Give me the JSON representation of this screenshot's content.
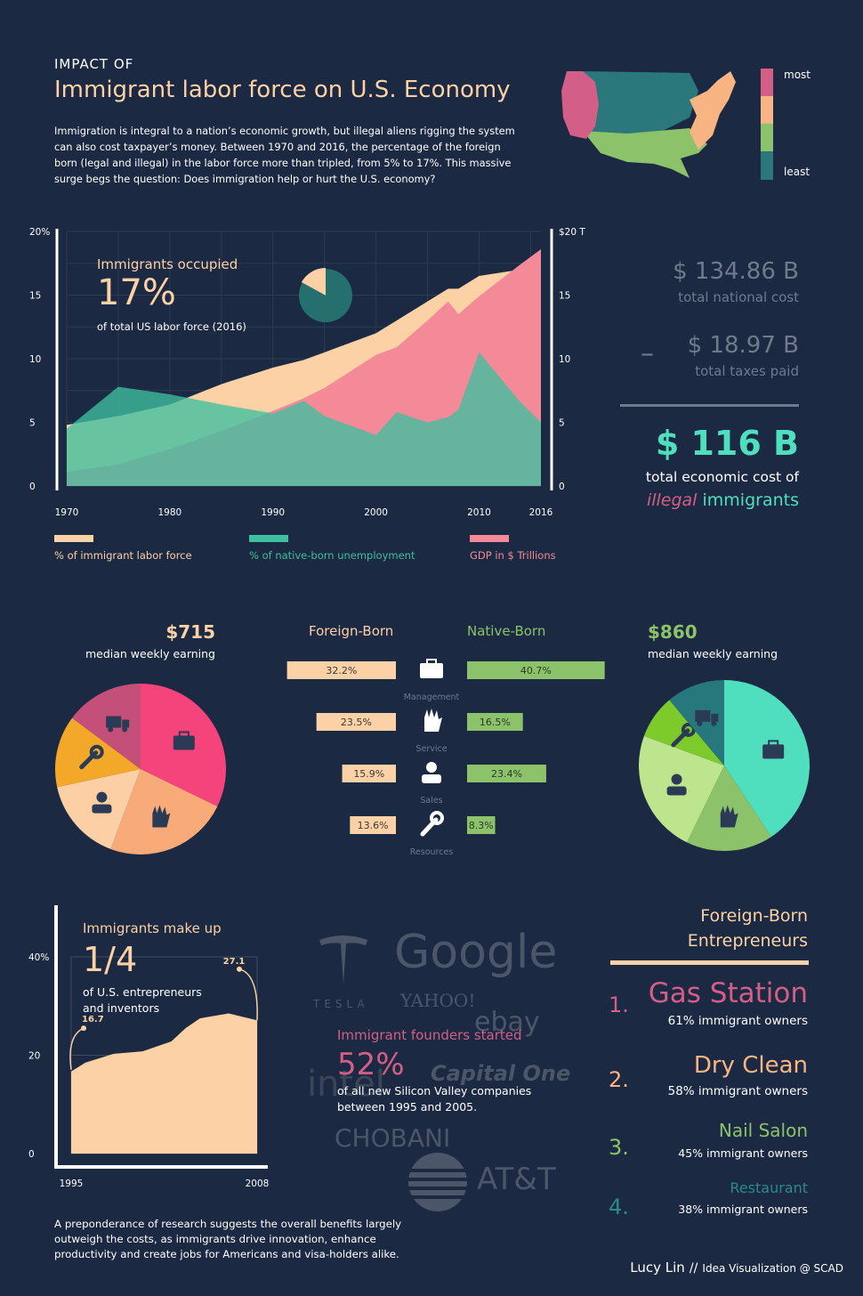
{
  "header": {
    "kicker": "IMPACT OF",
    "title": "Immigrant labor force on U.S. Economy",
    "intro": [
      "Immigration is integral to a nation’s economic growth, but illegal aliens rigging the system",
      "can also cost taxpayer’s money. Between 1970 and 2016, the percentage of the foreign",
      "born (legal and illegal) in the labor force more than tripled, from 5% to 17%. This massive",
      "surge begs the question: Does immigration help or hurt the U.S. economy?"
    ],
    "map_legend": {
      "most": "most",
      "least": "least",
      "colors": [
        "#d35f88",
        "#f8b482",
        "#8cc36a",
        "#2a787c"
      ]
    }
  },
  "chart_data": [
    {
      "type": "area",
      "x": [
        1970,
        1975,
        1980,
        1985,
        1990,
        1993,
        1995,
        2000,
        2002,
        2005,
        2007,
        2008,
        2010,
        2014,
        2016
      ],
      "series": [
        {
          "name": "% of immigrant labor force",
          "axis": "left",
          "color": "#fcd1a6",
          "values": [
            4.8,
            5.5,
            6.4,
            8.0,
            9.3,
            9.9,
            10.5,
            12.0,
            13.0,
            14.5,
            15.5,
            15.5,
            16.5,
            17.0,
            17.0
          ]
        },
        {
          "name": "GDP in $ Trillions",
          "axis": "right",
          "color": "#f48a98",
          "values": [
            1.1,
            1.7,
            2.9,
            4.3,
            5.9,
            6.9,
            7.7,
            10.3,
            10.9,
            13.0,
            14.5,
            13.5,
            14.9,
            17.4,
            18.6
          ]
        },
        {
          "name": "% of native-born unemployment",
          "axis": "left",
          "color": "#3dbfa0",
          "values": [
            4.5,
            7.8,
            7.2,
            6.4,
            5.7,
            6.7,
            5.5,
            4.0,
            5.8,
            5.0,
            5.4,
            6.0,
            10.5,
            6.6,
            5.0
          ]
        }
      ],
      "left_axis": {
        "ticks": [
          "0",
          "5",
          "10",
          "15",
          "20%"
        ],
        "ylim": [
          0,
          20
        ]
      },
      "right_axis": {
        "ticks": [
          "0",
          "5",
          "10",
          "15",
          "$20 T"
        ],
        "ylim": [
          0,
          20
        ]
      },
      "x_ticks": [
        "1970",
        "1980",
        "1990",
        "2000",
        "2010",
        "2016"
      ],
      "annotation": {
        "title": "Immigrants occupied",
        "value": "17%",
        "caption": "of total US labor force (2016)"
      },
      "inset_pie": {
        "values": [
          17,
          83
        ],
        "colors": [
          "#fcd1a6",
          "#25706e"
        ]
      },
      "legend": [
        "% of immigrant labor force",
        "% of native-born unemployment",
        "GDP in $ Trillions"
      ]
    },
    {
      "type": "bar",
      "categories": [
        "Management",
        "Service",
        "Sales",
        "Resources"
      ],
      "series": [
        {
          "name": "Foreign-Born",
          "values": [
            32.2,
            23.5,
            15.9,
            13.6
          ],
          "labels": [
            "32.2%",
            "23.5%",
            "15.9%",
            "13.6%"
          ],
          "color": "#fcd1a6"
        },
        {
          "name": "Native-Born",
          "values": [
            40.7,
            16.5,
            23.4,
            8.3
          ],
          "labels": [
            "40.7%",
            "16.5%",
            "23.4%",
            "8.3%"
          ],
          "color": "#8cc36a"
        }
      ]
    },
    {
      "type": "pie",
      "name": "Foreign-Born",
      "values": [
        32.2,
        23.5,
        15.9,
        13.6,
        14.8
      ],
      "colors": [
        "#f5447c",
        "#f8aa79",
        "#fccfa5",
        "#f3a82a",
        "#c4507a"
      ],
      "icons": [
        "briefcase-icon",
        "hand-icon",
        "person-icon",
        "wrench-icon",
        "truck-icon"
      ]
    },
    {
      "type": "pie",
      "name": "Native-Born",
      "values": [
        40.7,
        16.5,
        23.4,
        8.3,
        11.1
      ],
      "colors": [
        "#4fdfbf",
        "#8cc36a",
        "#bce58e",
        "#7ccb2b",
        "#26787d"
      ],
      "icons": [
        "briefcase-icon",
        "hand-icon",
        "person-icon",
        "wrench-icon",
        "truck-icon"
      ]
    },
    {
      "type": "area",
      "x": [
        1995,
        1996,
        1998,
        2000,
        2002,
        2003,
        2004,
        2006,
        2008
      ],
      "values": [
        16.7,
        18.5,
        20.3,
        20.8,
        22.8,
        25.5,
        27.5,
        28.5,
        27.1
      ],
      "x_ticks": [
        "1995",
        "2008"
      ],
      "y_ticks": [
        "0",
        "20",
        "40%"
      ],
      "ylim": [
        0,
        40
      ],
      "labels": [
        "16.7",
        "27.1"
      ],
      "color": "#fcd1a6"
    }
  ],
  "costs": {
    "national_value": "$ 134.86 B",
    "national_label": "total national cost",
    "minus": "–",
    "taxes_value": "$ 18.97 B",
    "taxes_label": "total taxes paid",
    "total_value": "$ 116 B",
    "total_label": "total economic cost of",
    "illegal": "illegal",
    "immigrants": "immigrants"
  },
  "earnings": {
    "foreign_value": "$715",
    "foreign_label": "median weekly earning",
    "native_value": "$860",
    "native_label": "median weekly earning"
  },
  "entrepreneurs": {
    "title": "Immigrants make up",
    "value": "1/4",
    "caption": [
      "of U.S. entrepreneurs",
      "and inventors"
    ],
    "founders_title": "Immigrant founders started",
    "founders_value": "52%",
    "founders_caption": [
      "of all new Silicon Valley companies",
      "between 1995 and 2005."
    ],
    "logos": [
      "Google",
      "TESLA",
      "YAHOO!",
      "ebay",
      "intel",
      "Capital One",
      "CHOBANI",
      "AT&T"
    ]
  },
  "ranking": {
    "title": [
      "Foreign-Born",
      "Entrepreneurs"
    ],
    "items": [
      {
        "num": "1.",
        "name": "Gas Station",
        "caption": "61% immigrant owners",
        "color": "#d35f88"
      },
      {
        "num": "2.",
        "name": "Dry Clean",
        "caption": "58% immigrant owners",
        "color": "#f8b482"
      },
      {
        "num": "3.",
        "name": "Nail Salon",
        "caption": "45% immigrant owners",
        "color": "#8cc36a"
      },
      {
        "num": "4.",
        "name": "Restaurant",
        "caption": "38% immigrant owners",
        "color": "#2a8a8c"
      }
    ]
  },
  "footer": {
    "text": [
      "A preponderance of research suggests the overall benefits largely",
      "outweigh the costs, as immigrants drive innovation, enhance",
      "productivity and create jobs for Americans and visa-holders alike."
    ],
    "author": "Lucy Lin",
    "sep": "//",
    "credit": "Idea Visualization @ SCAD"
  }
}
